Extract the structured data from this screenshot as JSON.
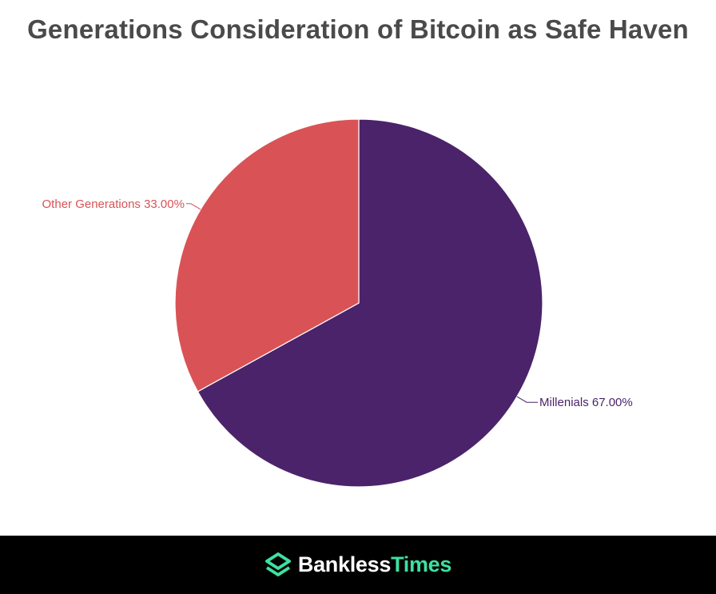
{
  "title": "Generations Consideration of Bitcoin as Safe Haven",
  "chart_data": {
    "type": "pie",
    "categories": [
      "Millenials",
      "Other Generations"
    ],
    "values": [
      67.0,
      33.0
    ],
    "labels": [
      "Millenials 67.00%",
      "Other Generations 33.00%"
    ],
    "colors": [
      "#4b236a",
      "#d95356"
    ],
    "start_angle": "12 o'clock",
    "direction": "clockwise",
    "legend": "none"
  },
  "footer": {
    "brand_part1": "Bankless",
    "brand_part2": "Times",
    "brand_color": "#3ee0a1"
  }
}
